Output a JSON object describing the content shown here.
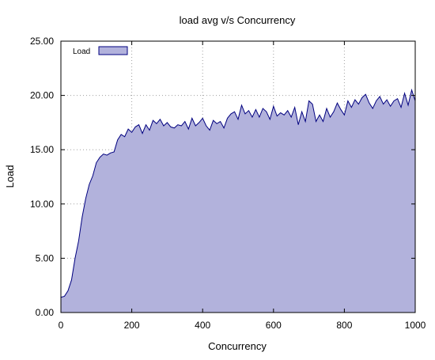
{
  "chart_data": {
    "type": "area",
    "title": "load avg v/s Concurrency",
    "xlabel": "Concurrency",
    "ylabel": "Load",
    "xlim": [
      0,
      1000
    ],
    "ylim": [
      0,
      25
    ],
    "x_ticks": [
      "0",
      "200",
      "400",
      "600",
      "800",
      "1000"
    ],
    "y_ticks": [
      "0.00",
      "5.00",
      "10.00",
      "15.00",
      "20.00",
      "25.00"
    ],
    "grid": true,
    "legend_position": "top-left",
    "series": [
      {
        "name": "Load",
        "fill_color": "#b2b2dc",
        "line_color": "#00007f",
        "x": [
          0,
          10,
          20,
          30,
          40,
          50,
          60,
          70,
          80,
          90,
          100,
          110,
          120,
          130,
          140,
          150,
          160,
          170,
          180,
          190,
          200,
          210,
          220,
          230,
          240,
          250,
          260,
          270,
          280,
          290,
          300,
          310,
          320,
          330,
          340,
          350,
          360,
          370,
          380,
          390,
          400,
          410,
          420,
          430,
          440,
          450,
          460,
          470,
          480,
          490,
          500,
          510,
          520,
          530,
          540,
          550,
          560,
          570,
          580,
          590,
          600,
          610,
          620,
          630,
          640,
          650,
          660,
          670,
          680,
          690,
          700,
          710,
          720,
          730,
          740,
          750,
          760,
          770,
          780,
          790,
          800,
          810,
          820,
          830,
          840,
          850,
          860,
          870,
          880,
          890,
          900,
          910,
          920,
          930,
          940,
          950,
          960,
          970,
          980,
          990,
          1000
        ],
        "values": [
          1.4,
          1.5,
          2.0,
          3.0,
          5.0,
          6.6,
          8.8,
          10.5,
          11.8,
          12.6,
          13.8,
          14.3,
          14.6,
          14.5,
          14.7,
          14.8,
          15.9,
          16.4,
          16.2,
          16.9,
          16.6,
          17.1,
          17.3,
          16.5,
          17.3,
          16.8,
          17.7,
          17.4,
          17.8,
          17.2,
          17.5,
          17.1,
          17.0,
          17.3,
          17.2,
          17.6,
          16.9,
          17.9,
          17.2,
          17.5,
          17.9,
          17.2,
          16.8,
          17.7,
          17.4,
          17.6,
          17.0,
          17.9,
          18.3,
          18.5,
          17.8,
          19.1,
          18.3,
          18.6,
          18.0,
          18.7,
          18.0,
          18.8,
          18.5,
          17.8,
          19.0,
          18.1,
          18.4,
          18.2,
          18.6,
          18.0,
          18.9,
          17.3,
          18.5,
          17.6,
          19.5,
          19.2,
          17.6,
          18.2,
          17.6,
          18.8,
          18.0,
          18.5,
          19.3,
          18.7,
          18.2,
          19.5,
          18.9,
          19.6,
          19.2,
          19.8,
          20.1,
          19.3,
          18.8,
          19.5,
          19.9,
          19.2,
          19.6,
          19.0,
          19.5,
          19.7,
          18.9,
          20.2,
          19.1,
          20.5,
          19.5
        ]
      }
    ]
  }
}
